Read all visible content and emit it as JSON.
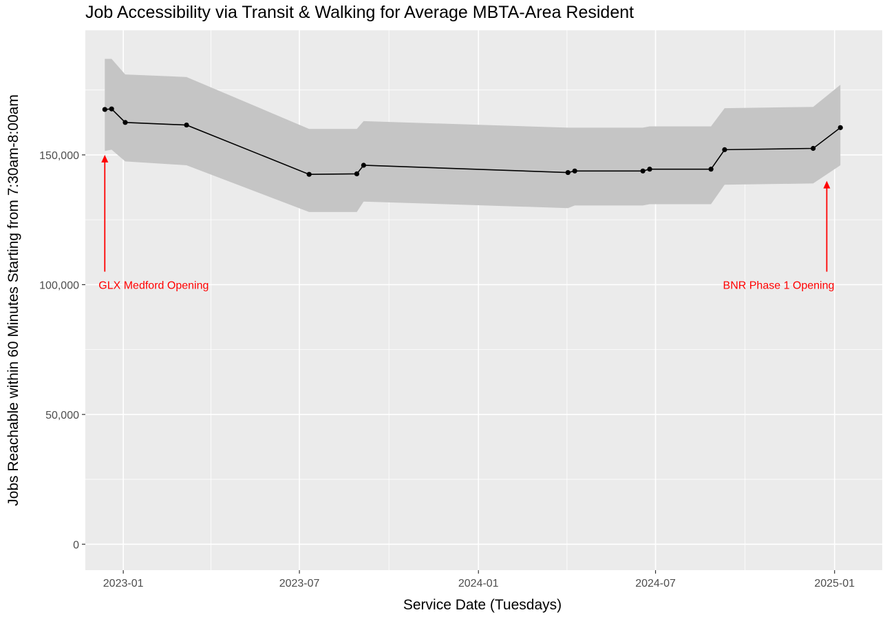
{
  "chart_data": {
    "type": "line",
    "title": "Job Accessibility via Transit & Walking for Average MBTA-Area Resident",
    "xlabel": "Service Date (Tuesdays)",
    "ylabel": "Jobs Reachable within 60 Minutes Starting from 7:30am-8:00am",
    "grid": true,
    "background": "#ebebeb",
    "ribbon_color": "#c5c5c5",
    "line_color": "#000000",
    "annotation_color": "#ff0000",
    "xlim": [
      "2022-11-23",
      "2025-02-19"
    ],
    "ylim": [
      -10000,
      198000
    ],
    "x_ticks": [
      {
        "date": "2023-01-01",
        "label": "2023-01"
      },
      {
        "date": "2023-07-01",
        "label": "2023-07"
      },
      {
        "date": "2024-01-01",
        "label": "2024-01"
      },
      {
        "date": "2024-07-01",
        "label": "2024-07"
      },
      {
        "date": "2025-01-01",
        "label": "2025-01"
      }
    ],
    "x_minor_ticks": [
      "2022-10-01",
      "2023-04-01",
      "2023-10-01",
      "2024-04-01",
      "2024-10-01"
    ],
    "y_ticks": [
      {
        "value": 0,
        "label": "0"
      },
      {
        "value": 50000,
        "label": "50,000"
      },
      {
        "value": 100000,
        "label": "100,000"
      },
      {
        "value": 150000,
        "label": "150,000"
      }
    ],
    "y_minor_ticks": [
      25000,
      75000,
      125000,
      175000
    ],
    "series": [
      {
        "points": [
          {
            "x": "2022-12-13",
            "y": 167500,
            "low": 151500,
            "high": 187000
          },
          {
            "x": "2022-12-20",
            "y": 167700,
            "low": 152000,
            "high": 187000
          },
          {
            "x": "2023-01-03",
            "y": 162500,
            "low": 147500,
            "high": 181000
          },
          {
            "x": "2023-03-07",
            "y": 161500,
            "low": 146000,
            "high": 180000
          },
          {
            "x": "2023-07-11",
            "y": 142500,
            "low": 128000,
            "high": 160000
          },
          {
            "x": "2023-08-29",
            "y": 142700,
            "low": 128000,
            "high": 160000
          },
          {
            "x": "2023-09-05",
            "y": 146000,
            "low": 132000,
            "high": 163000
          },
          {
            "x": "2024-04-02",
            "y": 143200,
            "low": 129500,
            "high": 160500
          },
          {
            "x": "2024-04-09",
            "y": 143800,
            "low": 130500,
            "high": 160500
          },
          {
            "x": "2024-06-18",
            "y": 143800,
            "low": 130500,
            "high": 160500
          },
          {
            "x": "2024-06-25",
            "y": 144500,
            "low": 131000,
            "high": 161000
          },
          {
            "x": "2024-08-27",
            "y": 144500,
            "low": 131000,
            "high": 161000
          },
          {
            "x": "2024-09-10",
            "y": 152000,
            "low": 138500,
            "high": 168000
          },
          {
            "x": "2024-12-10",
            "y": 152500,
            "low": 139000,
            "high": 168500
          },
          {
            "x": "2025-01-07",
            "y": 160500,
            "low": 146000,
            "high": 177000
          }
        ]
      }
    ],
    "annotations": [
      {
        "text": "GLX Medford Opening",
        "x": "2022-12-13",
        "arrow_from_y": 105000,
        "arrow_to_y": 150000,
        "text_y": 100000,
        "align": "left"
      },
      {
        "text": "BNR Phase 1 Opening",
        "x": "2024-12-24",
        "arrow_from_y": 105000,
        "arrow_to_y": 140000,
        "text_y": 100000,
        "align": "right"
      }
    ]
  }
}
